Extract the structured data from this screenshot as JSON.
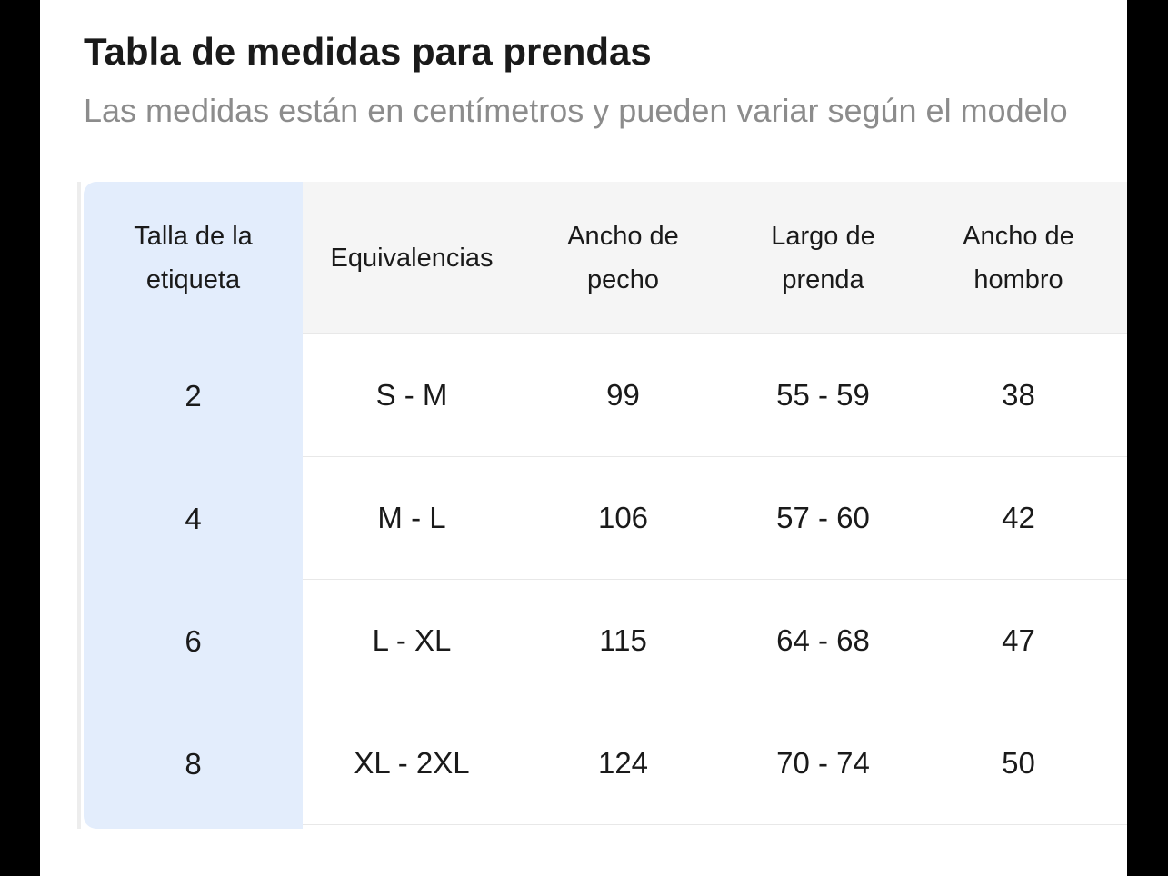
{
  "modal": {
    "title": "Tabla de medidas para prendas",
    "subtitle": "Las medidas están en centímetros y pueden variar según el modelo"
  },
  "size_table": {
    "label_column_header": "Talla de la etiqueta",
    "columns": [
      "Equivalencias",
      "Ancho de pecho",
      "Largo de prenda",
      "Ancho de hombro"
    ],
    "rows": [
      {
        "label": "2",
        "values": [
          "S - M",
          "99",
          "55 - 59",
          "38"
        ]
      },
      {
        "label": "4",
        "values": [
          "M - L",
          "106",
          "57 - 60",
          "42"
        ]
      },
      {
        "label": "6",
        "values": [
          "L - XL",
          "115",
          "64 - 68",
          "47"
        ]
      },
      {
        "label": "8",
        "values": [
          "XL - 2XL",
          "124",
          "70 - 74",
          "50"
        ]
      }
    ]
  },
  "colors": {
    "label_column_bg": "#e3edfc",
    "header_bg": "#f5f5f5",
    "row_border": "#e8e8e8",
    "text_primary": "#1a1a1a",
    "text_secondary": "#8c8c8c",
    "overlay": "#000000"
  }
}
